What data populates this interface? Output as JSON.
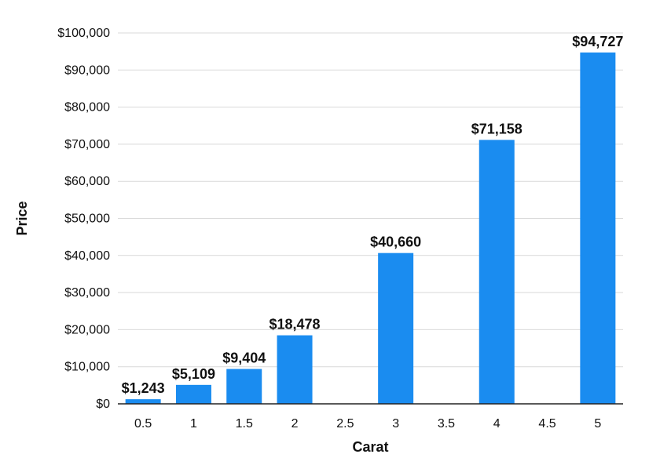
{
  "chart_data": {
    "type": "bar",
    "title": "",
    "xlabel": "Carat",
    "ylabel": "Price",
    "categories": [
      "0.5",
      "1",
      "1.5",
      "2",
      "2.5",
      "3",
      "3.5",
      "4",
      "4.5",
      "5"
    ],
    "values": [
      1243,
      5109,
      9404,
      18478,
      null,
      40660,
      null,
      71158,
      null,
      94727
    ],
    "data_labels": [
      "$1,243",
      "$5,109",
      "$9,404",
      "$18,478",
      "",
      "$40,660",
      "",
      "$71,158",
      "",
      "$94,727"
    ],
    "ylim": [
      0,
      100000
    ],
    "yticks": [
      0,
      10000,
      20000,
      30000,
      40000,
      50000,
      60000,
      70000,
      80000,
      90000,
      100000
    ],
    "ytick_labels": [
      "$0",
      "$10,000",
      "$20,000",
      "$30,000",
      "$40,000",
      "$50,000",
      "$60,000",
      "$70,000",
      "$80,000",
      "$90,000",
      "$100,000"
    ],
    "grid": true,
    "legend": "none",
    "bar_color": "#1a8cf0"
  }
}
